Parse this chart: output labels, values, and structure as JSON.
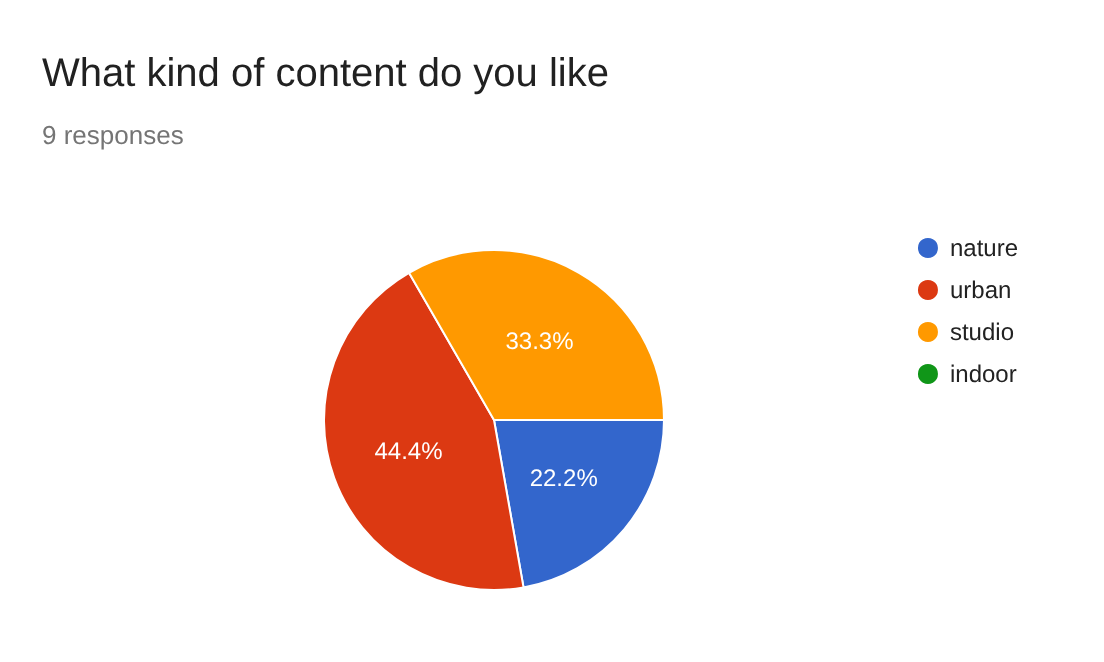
{
  "chart_data": {
    "type": "pie",
    "title": "What kind of content do you like",
    "subtitle": "9 responses",
    "categories": [
      "nature",
      "urban",
      "studio",
      "indoor"
    ],
    "values": [
      22.2,
      44.4,
      33.3,
      0
    ],
    "value_labels": [
      "22.2%",
      "44.4%",
      "33.3%",
      null
    ],
    "colors": [
      "#3366cc",
      "#dc3912",
      "#ff9900",
      "#109618"
    ],
    "legend": "right"
  }
}
